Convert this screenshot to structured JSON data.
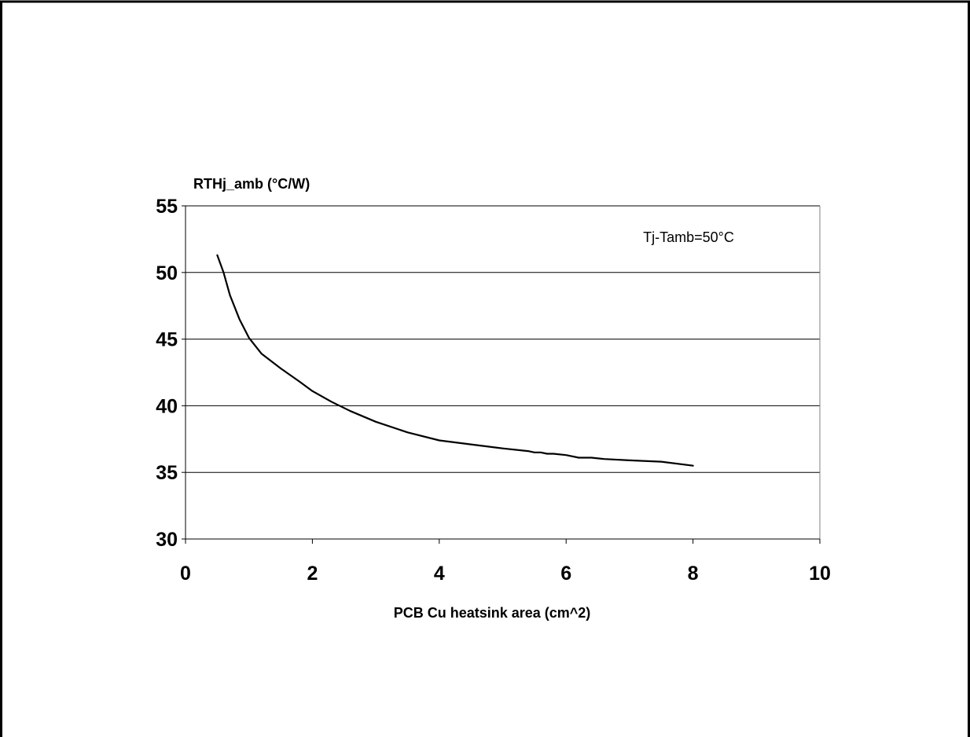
{
  "chart_data": {
    "type": "line",
    "ylabel": "RTHj_amb (°C/W)",
    "xlabel": "PCB Cu heatsink area (cm^2)",
    "annotation": "Tj-Tamb=50°C",
    "xlim": [
      0,
      10
    ],
    "ylim": [
      30,
      55
    ],
    "xticks": [
      "0",
      "2",
      "4",
      "6",
      "8",
      "10"
    ],
    "yticks": [
      "30",
      "35",
      "40",
      "45",
      "50",
      "55"
    ],
    "grid": "horizontal",
    "series": [
      {
        "color": "#000000",
        "x": [
          0.5,
          0.6,
          0.7,
          0.85,
          1.0,
          1.2,
          1.5,
          1.8,
          2.0,
          2.3,
          2.6,
          3.0,
          3.5,
          4.0,
          4.5,
          5.0,
          5.4,
          5.5,
          5.6,
          5.7,
          5.8,
          6.0,
          6.2,
          6.4,
          6.6,
          7.0,
          7.5,
          8.0
        ],
        "y": [
          51.3,
          50.0,
          48.3,
          46.5,
          45.1,
          43.9,
          42.8,
          41.8,
          41.1,
          40.3,
          39.6,
          38.8,
          38.0,
          37.4,
          37.1,
          36.8,
          36.6,
          36.5,
          36.5,
          36.4,
          36.4,
          36.3,
          36.1,
          36.1,
          36.0,
          35.9,
          35.8,
          35.5
        ]
      }
    ]
  }
}
